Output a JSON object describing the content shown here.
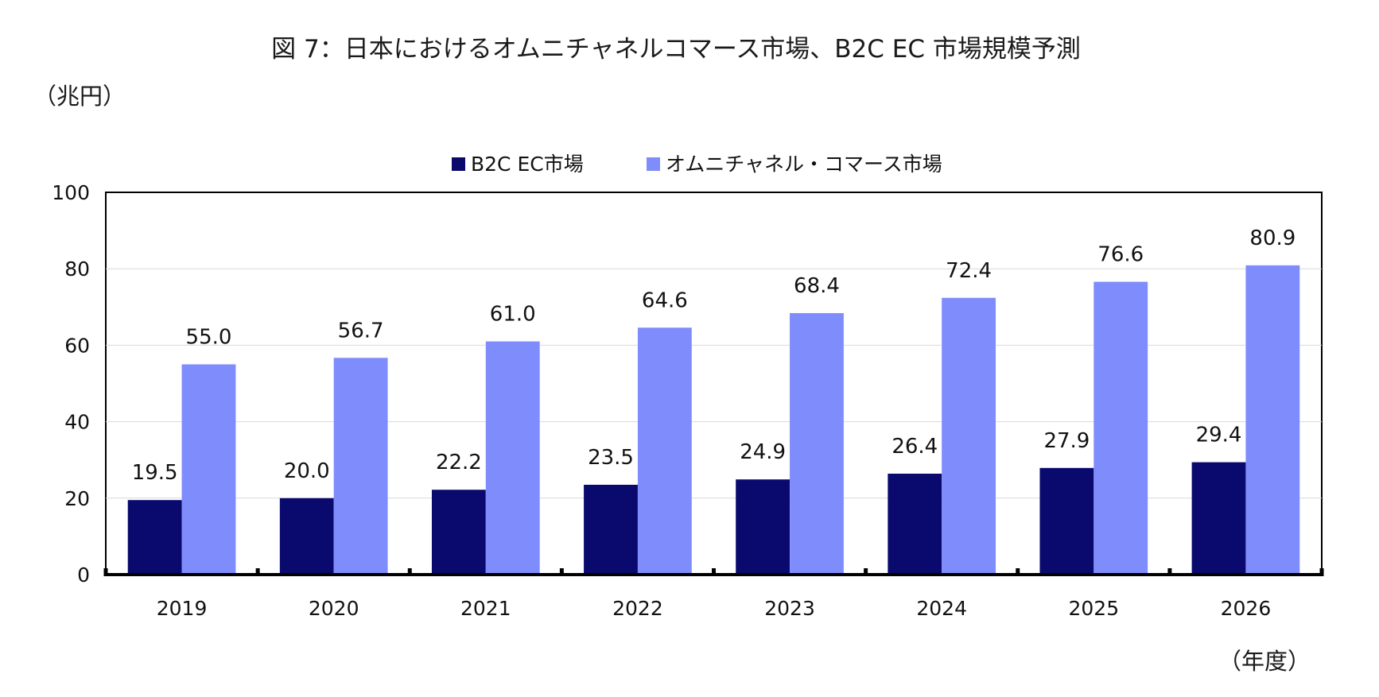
{
  "chart_data": {
    "type": "bar",
    "title": "図 7：日本におけるオムニチャネルコマース市場、B2C EC 市場規模予測",
    "y_unit_label": "（兆円）",
    "x_unit_label": "（年度）",
    "categories": [
      "2019",
      "2020",
      "2021",
      "2022",
      "2023",
      "2024",
      "2025",
      "2026"
    ],
    "series": [
      {
        "name": "B2C EC市場",
        "color": "#0a0a6e",
        "values": [
          19.5,
          20.0,
          22.2,
          23.5,
          24.9,
          26.4,
          27.9,
          29.4
        ],
        "labels": [
          "19.5",
          "20.0",
          "22.2",
          "23.5",
          "24.9",
          "26.4",
          "27.9",
          "29.4"
        ]
      },
      {
        "name": "オムニチャネル・コマース市場",
        "color": "#7f8cfc",
        "values": [
          55.0,
          56.7,
          61.0,
          64.6,
          68.4,
          72.4,
          76.6,
          80.9
        ],
        "labels": [
          "55.0",
          "56.7",
          "61.0",
          "64.6",
          "68.4",
          "72.4",
          "76.6",
          "80.9"
        ]
      }
    ],
    "ylim": [
      0,
      100
    ],
    "yticks": [
      0,
      20,
      40,
      60,
      80,
      100
    ],
    "ytick_labels": [
      "0",
      "20",
      "40",
      "60",
      "80",
      "100"
    ],
    "grid": true,
    "legend_position": "top-center"
  }
}
